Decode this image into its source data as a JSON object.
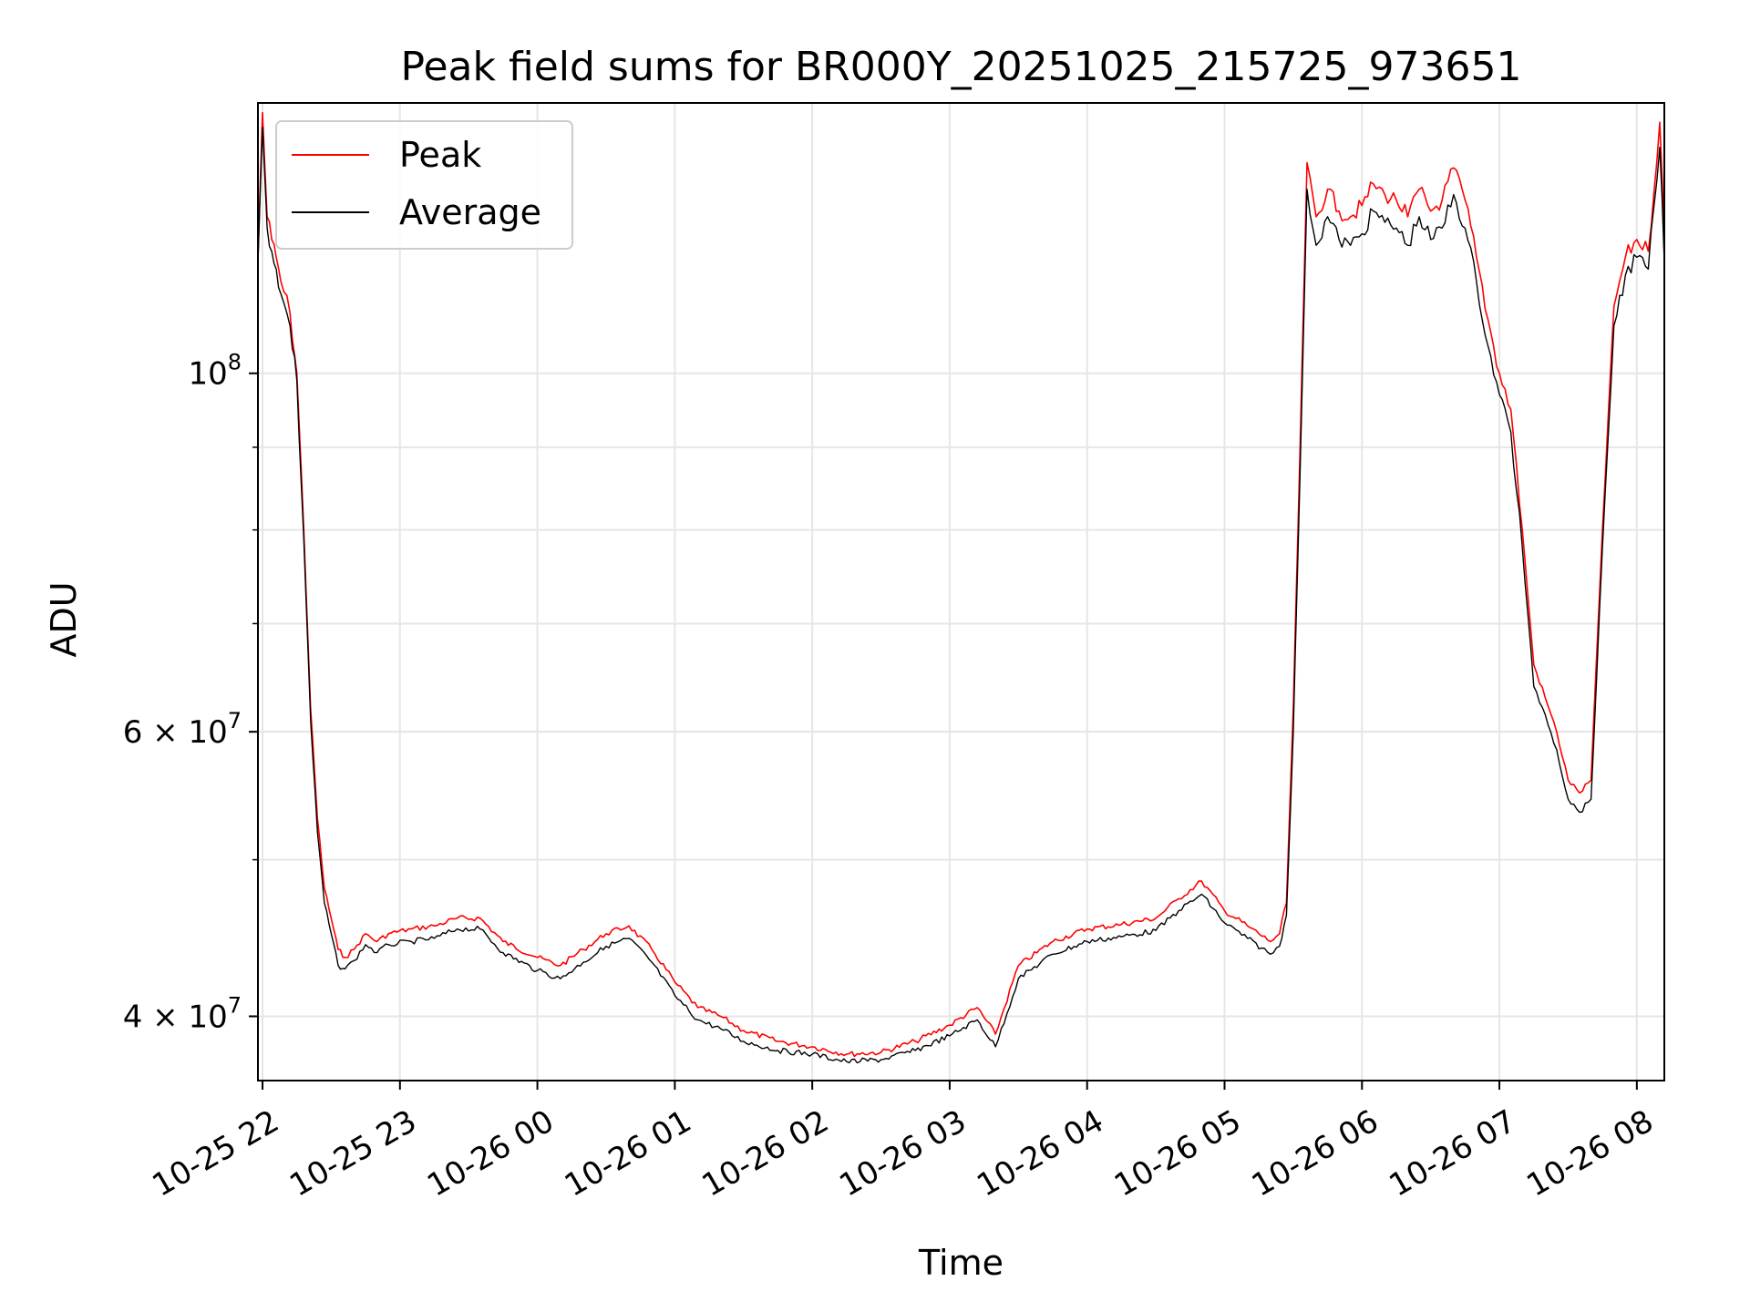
{
  "chart_data": {
    "type": "line",
    "title": "Peak field sums for BR000Y_20251025_215725_973651",
    "xlabel": "Time",
    "ylabel": "ADU",
    "yscale": "log",
    "ylim": [
      36500000,
      147000000
    ],
    "xlim": [
      "2025-10-25 21:58",
      "2025-10-26 08:12"
    ],
    "grid": true,
    "legend_position": "top-left",
    "x_ticks": [
      "10-25 22",
      "10-25 23",
      "10-26 00",
      "10-26 01",
      "10-26 02",
      "10-26 03",
      "10-26 04",
      "10-26 05",
      "10-26 06",
      "10-26 07",
      "10-26 08"
    ],
    "y_ticks": [
      {
        "value": 100000000,
        "label_base": "10",
        "label_exp": "8"
      },
      {
        "value": 60000000,
        "label_base": "6 × 10",
        "label_exp": "7"
      },
      {
        "value": 40000000,
        "label_base": "4 × 10",
        "label_exp": "7"
      }
    ],
    "series": [
      {
        "name": "Peak",
        "color": "#ff0000",
        "x": [
          "2025-10-25 21:58",
          "2025-10-25 22:00",
          "2025-10-25 22:02",
          "2025-10-25 22:04",
          "2025-10-25 22:06",
          "2025-10-25 22:08",
          "2025-10-25 22:12",
          "2025-10-25 22:15",
          "2025-10-25 22:18",
          "2025-10-25 22:21",
          "2025-10-25 22:24",
          "2025-10-25 22:27",
          "2025-10-25 22:30",
          "2025-10-25 22:33",
          "2025-10-25 22:36",
          "2025-10-25 22:40",
          "2025-10-25 22:45",
          "2025-10-25 22:50",
          "2025-10-25 22:55",
          "2025-10-25 23:05",
          "2025-10-25 23:15",
          "2025-10-25 23:25",
          "2025-10-25 23:35",
          "2025-10-25 23:45",
          "2025-10-26 00:00",
          "2025-10-26 00:10",
          "2025-10-26 00:20",
          "2025-10-26 00:30",
          "2025-10-26 00:40",
          "2025-10-26 00:50",
          "2025-10-26 01:00",
          "2025-10-26 01:10",
          "2025-10-26 01:20",
          "2025-10-26 01:30",
          "2025-10-26 01:45",
          "2025-10-26 02:00",
          "2025-10-26 02:15",
          "2025-10-26 02:30",
          "2025-10-26 02:45",
          "2025-10-26 03:00",
          "2025-10-26 03:12",
          "2025-10-26 03:20",
          "2025-10-26 03:30",
          "2025-10-26 03:45",
          "2025-10-26 04:00",
          "2025-10-26 04:15",
          "2025-10-26 04:30",
          "2025-10-26 04:40",
          "2025-10-26 04:50",
          "2025-10-26 05:00",
          "2025-10-26 05:10",
          "2025-10-26 05:20",
          "2025-10-26 05:24",
          "2025-10-26 05:27",
          "2025-10-26 05:30",
          "2025-10-26 05:33",
          "2025-10-26 05:36",
          "2025-10-26 05:40",
          "2025-10-26 05:45",
          "2025-10-26 05:50",
          "2025-10-26 05:55",
          "2025-10-26 06:00",
          "2025-10-26 06:05",
          "2025-10-26 06:10",
          "2025-10-26 06:15",
          "2025-10-26 06:20",
          "2025-10-26 06:25",
          "2025-10-26 06:30",
          "2025-10-26 06:35",
          "2025-10-26 06:40",
          "2025-10-26 06:45",
          "2025-10-26 06:50",
          "2025-10-26 06:55",
          "2025-10-26 07:00",
          "2025-10-26 07:05",
          "2025-10-26 07:10",
          "2025-10-26 07:15",
          "2025-10-26 07:20",
          "2025-10-26 07:25",
          "2025-10-26 07:30",
          "2025-10-26 07:35",
          "2025-10-26 07:40",
          "2025-10-26 07:45",
          "2025-10-26 07:50",
          "2025-10-26 07:55",
          "2025-10-26 08:00",
          "2025-10-26 08:05",
          "2025-10-26 08:10",
          "2025-10-26 08:12"
        ],
        "values": [
          118000000,
          145000000,
          125000000,
          121000000,
          118000000,
          114000000,
          109000000,
          100000000,
          80000000,
          62000000,
          53000000,
          48000000,
          46000000,
          44000000,
          43500000,
          44000000,
          45000000,
          44500000,
          45000000,
          45300000,
          45500000,
          46000000,
          46000000,
          44500000,
          43500000,
          43000000,
          44000000,
          45000000,
          45500000,
          44000000,
          42000000,
          40500000,
          40000000,
          39200000,
          38600000,
          38300000,
          37900000,
          38000000,
          38600000,
          39500000,
          40500000,
          39000000,
          43000000,
          44500000,
          45300000,
          45600000,
          46000000,
          47300000,
          48500000,
          46500000,
          45500000,
          44500000,
          45000000,
          47000000,
          62000000,
          90000000,
          135000000,
          125000000,
          130000000,
          126000000,
          125000000,
          127000000,
          131000000,
          129000000,
          128000000,
          125000000,
          130000000,
          126000000,
          128000000,
          134000000,
          128000000,
          118000000,
          108000000,
          100000000,
          95000000,
          80000000,
          66000000,
          63000000,
          60000000,
          56000000,
          55000000,
          56000000,
          80000000,
          110000000,
          118000000,
          121000000,
          119000000,
          143000000,
          121000000
        ]
      },
      {
        "name": "Average",
        "color": "#000000",
        "x": [
          "2025-10-25 21:58",
          "2025-10-25 22:00",
          "2025-10-25 22:02",
          "2025-10-25 22:04",
          "2025-10-25 22:06",
          "2025-10-25 22:08",
          "2025-10-25 22:12",
          "2025-10-25 22:15",
          "2025-10-25 22:18",
          "2025-10-25 22:21",
          "2025-10-25 22:24",
          "2025-10-25 22:27",
          "2025-10-25 22:30",
          "2025-10-25 22:33",
          "2025-10-25 22:36",
          "2025-10-25 22:40",
          "2025-10-25 22:45",
          "2025-10-25 22:50",
          "2025-10-25 22:55",
          "2025-10-25 23:05",
          "2025-10-25 23:15",
          "2025-10-25 23:25",
          "2025-10-25 23:35",
          "2025-10-25 23:45",
          "2025-10-26 00:00",
          "2025-10-26 00:10",
          "2025-10-26 00:20",
          "2025-10-26 00:30",
          "2025-10-26 00:40",
          "2025-10-26 00:50",
          "2025-10-26 01:00",
          "2025-10-26 01:10",
          "2025-10-26 01:20",
          "2025-10-26 01:30",
          "2025-10-26 01:45",
          "2025-10-26 02:00",
          "2025-10-26 02:15",
          "2025-10-26 02:30",
          "2025-10-26 02:45",
          "2025-10-26 03:00",
          "2025-10-26 03:12",
          "2025-10-26 03:20",
          "2025-10-26 03:30",
          "2025-10-26 03:45",
          "2025-10-26 04:00",
          "2025-10-26 04:15",
          "2025-10-26 04:30",
          "2025-10-26 04:40",
          "2025-10-26 04:50",
          "2025-10-26 05:00",
          "2025-10-26 05:10",
          "2025-10-26 05:20",
          "2025-10-26 05:24",
          "2025-10-26 05:27",
          "2025-10-26 05:30",
          "2025-10-26 05:33",
          "2025-10-26 05:36",
          "2025-10-26 05:40",
          "2025-10-26 05:45",
          "2025-10-26 05:50",
          "2025-10-26 05:55",
          "2025-10-26 06:00",
          "2025-10-26 06:05",
          "2025-10-26 06:10",
          "2025-10-26 06:15",
          "2025-10-26 06:20",
          "2025-10-26 06:25",
          "2025-10-26 06:30",
          "2025-10-26 06:35",
          "2025-10-26 06:40",
          "2025-10-26 06:45",
          "2025-10-26 06:50",
          "2025-10-26 06:55",
          "2025-10-26 07:00",
          "2025-10-26 07:05",
          "2025-10-26 07:10",
          "2025-10-26 07:15",
          "2025-10-26 07:20",
          "2025-10-26 07:25",
          "2025-10-26 07:30",
          "2025-10-26 07:35",
          "2025-10-26 07:40",
          "2025-10-26 07:45",
          "2025-10-26 07:50",
          "2025-10-26 07:55",
          "2025-10-26 08:00",
          "2025-10-26 08:05",
          "2025-10-26 08:10",
          "2025-10-26 08:12"
        ],
        "values": [
          117000000,
          142000000,
          123000000,
          119000000,
          116000000,
          112000000,
          107000000,
          99000000,
          79000000,
          61000000,
          52000000,
          47000000,
          45000000,
          43000000,
          42800000,
          43300000,
          44300000,
          43800000,
          44300000,
          44500000,
          44700000,
          45300000,
          45300000,
          43800000,
          42700000,
          42200000,
          43200000,
          44200000,
          44700000,
          43200000,
          41200000,
          39800000,
          39300000,
          38600000,
          38100000,
          37900000,
          37500000,
          37600000,
          38100000,
          38900000,
          39800000,
          38300000,
          42200000,
          43700000,
          44500000,
          44800000,
          45200000,
          46500000,
          47600000,
          45700000,
          44700000,
          43700000,
          44200000,
          46200000,
          60000000,
          87000000,
          130000000,
          120000000,
          125000000,
          121000000,
          120000000,
          122000000,
          126000000,
          124000000,
          123000000,
          120000000,
          125000000,
          121000000,
          123000000,
          129000000,
          123000000,
          114000000,
          104000000,
          97000000,
          92000000,
          78000000,
          64000000,
          61500000,
          58500000,
          54500000,
          53500000,
          54500000,
          78000000,
          107000000,
          115000000,
          118000000,
          116000000,
          138000000,
          117000000
        ]
      }
    ]
  }
}
